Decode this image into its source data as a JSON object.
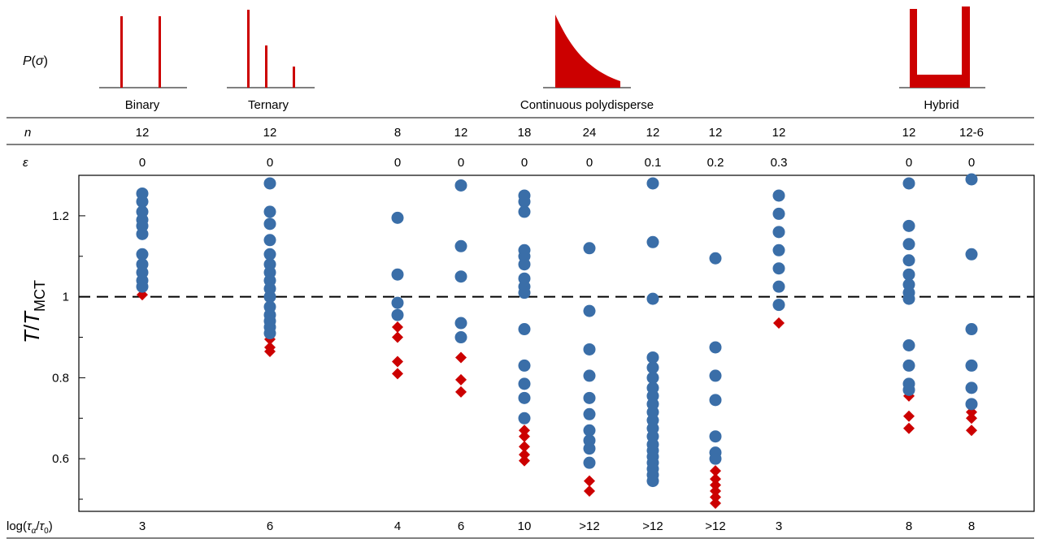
{
  "colors": {
    "dist": "#cc0000",
    "circle": "#3a6ea8",
    "diamond": "#cc0000",
    "line": "#000000"
  },
  "row_labels": {
    "distribution": "P(σ)",
    "n": "n",
    "epsilon": "ε",
    "tau": "log(τα/τ0)"
  },
  "groups": [
    {
      "name": "Binary",
      "dist": "binary"
    },
    {
      "name": "Ternary",
      "dist": "ternary"
    },
    {
      "name": "Continuous polydisperse",
      "dist": "continuous"
    },
    {
      "name": "Hybrid",
      "dist": "hybrid"
    }
  ],
  "chart_data": {
    "type": "scatter",
    "ylabel": "T/TMCT",
    "ylim": [
      0.47,
      1.3
    ],
    "yticks": [
      0.6,
      0.8,
      1,
      1.2
    ],
    "ytick_labels": [
      "0.6",
      "0.8",
      "1",
      "1.2"
    ],
    "reference_line": 1,
    "columns": [
      {
        "group": "Binary",
        "n": "12",
        "epsilon": "0",
        "tau": "3",
        "circles": [
          1.255,
          1.235,
          1.21,
          1.19,
          1.175,
          1.155,
          1.105,
          1.08,
          1.06,
          1.04,
          1.025
        ],
        "diamonds": [
          1.005
        ]
      },
      {
        "group": "Ternary",
        "n": "12",
        "epsilon": "0",
        "tau": "6",
        "circles": [
          1.28,
          1.21,
          1.18,
          1.14,
          1.105,
          1.08,
          1.06,
          1.04,
          1.02,
          1.0,
          0.975,
          0.955,
          0.94,
          0.925,
          0.91
        ],
        "diamonds": [
          0.895,
          0.875,
          0.865
        ]
      },
      {
        "group": "Continuous polydisperse",
        "n": "8",
        "epsilon": "0",
        "tau": "4",
        "circles": [
          1.195,
          1.055,
          0.985,
          0.955
        ],
        "diamonds": [
          0.925,
          0.9,
          0.84,
          0.81
        ]
      },
      {
        "group": "Continuous polydisperse",
        "n": "12",
        "epsilon": "0",
        "tau": "6",
        "circles": [
          1.275,
          1.125,
          1.05,
          0.935,
          0.9
        ],
        "diamonds": [
          0.85,
          0.795,
          0.765
        ]
      },
      {
        "group": "Continuous polydisperse",
        "n": "18",
        "epsilon": "0",
        "tau": "10",
        "circles": [
          1.25,
          1.235,
          1.21,
          1.115,
          1.1,
          1.08,
          1.045,
          1.025,
          1.01,
          0.92,
          0.83,
          0.785,
          0.75,
          0.7
        ],
        "diamonds": [
          0.67,
          0.655,
          0.63,
          0.61,
          0.595
        ]
      },
      {
        "group": "Continuous polydisperse",
        "n": "24",
        "epsilon": "0",
        "tau": ">12",
        "circles": [
          1.12,
          0.965,
          0.87,
          0.805,
          0.75,
          0.71,
          0.67,
          0.645,
          0.625,
          0.59
        ],
        "diamonds": [
          0.545,
          0.52
        ]
      },
      {
        "group": "Continuous polydisperse",
        "n": "12",
        "epsilon": "0.1",
        "tau": ">12",
        "circles": [
          1.28,
          1.135,
          0.995,
          0.85,
          0.825,
          0.8,
          0.775,
          0.755,
          0.735,
          0.715,
          0.695,
          0.675,
          0.655,
          0.635,
          0.62,
          0.605,
          0.59,
          0.575,
          0.56,
          0.545
        ],
        "diamonds": []
      },
      {
        "group": "Continuous polydisperse",
        "n": "12",
        "epsilon": "0.2",
        "tau": ">12",
        "circles": [
          1.095,
          0.875,
          0.805,
          0.745,
          0.655,
          0.615,
          0.6
        ],
        "diamonds": [
          0.57,
          0.55,
          0.535,
          0.52,
          0.505,
          0.49
        ]
      },
      {
        "group": "Continuous polydisperse",
        "n": "12",
        "epsilon": "0.3",
        "tau": "3",
        "circles": [
          1.25,
          1.205,
          1.16,
          1.115,
          1.07,
          1.025,
          0.98
        ],
        "diamonds": [
          0.935
        ]
      },
      {
        "group": "Hybrid",
        "n": "12",
        "epsilon": "0",
        "tau": "8",
        "circles": [
          1.28,
          1.175,
          1.13,
          1.09,
          1.055,
          1.03,
          1.01,
          0.995,
          0.88,
          0.83,
          0.785,
          0.77
        ],
        "diamonds": [
          0.755,
          0.705,
          0.675
        ]
      },
      {
        "group": "Hybrid",
        "n": "12-6",
        "epsilon": "0",
        "tau": "8",
        "circles": [
          1.29,
          1.105,
          0.92,
          0.83,
          0.775,
          0.735
        ],
        "diamonds": [
          0.715,
          0.7,
          0.67
        ]
      }
    ]
  }
}
